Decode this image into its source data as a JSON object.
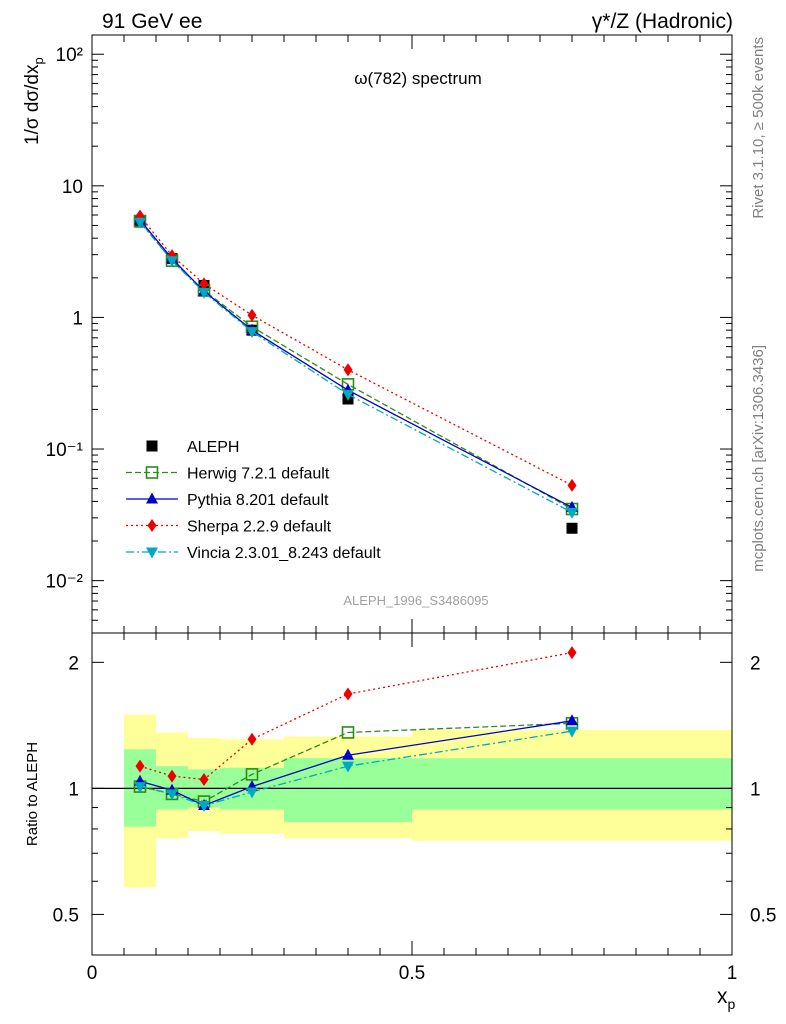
{
  "header": {
    "left": "91 GeV ee",
    "right": "γ*/Z (Hadronic)"
  },
  "side_labels": {
    "rivet": "Rivet 3.1.10, ≥ 500k events",
    "mcplots": "mcplots.cern.ch [arXiv:1306.3436]"
  },
  "chart_data": [
    {
      "type": "line",
      "panel": "main",
      "title": "ω(782) spectrum",
      "watermark": "ALEPH_1996_S3486095",
      "ylabel": "1/σ dσ/dx_p",
      "y_scale": "log",
      "ylim": [
        0.004,
        140
      ],
      "xlim": [
        0,
        1
      ],
      "y_ticks": [
        "10⁻²",
        "10⁻¹",
        "1",
        "10",
        "10²"
      ],
      "legend_position": "bottom-left",
      "x": [
        0.075,
        0.125,
        0.175,
        0.25,
        0.4,
        0.75
      ],
      "series": [
        {
          "name": "ALEPH",
          "color": "#000000",
          "marker": "square-filled",
          "line": "none",
          "values": [
            5.3,
            2.8,
            1.75,
            0.8,
            0.24,
            0.025
          ]
        },
        {
          "name": "Herwig 7.2.1 default",
          "color": "#2e8b1a",
          "marker": "square-open",
          "line": "dashed",
          "values": [
            5.4,
            2.7,
            1.6,
            0.85,
            0.31,
            0.035
          ]
        },
        {
          "name": "Pythia 8.201 default",
          "color": "#0000cc",
          "marker": "triangle-up",
          "line": "solid",
          "values": [
            5.5,
            2.8,
            1.58,
            0.8,
            0.28,
            0.036
          ]
        },
        {
          "name": "Sherpa 2.2.9 default",
          "color": "#ee0000",
          "marker": "diamond",
          "line": "dotted",
          "values": [
            5.9,
            2.95,
            1.8,
            1.04,
            0.4,
            0.053
          ]
        },
        {
          "name": "Vincia 2.3.01_8.243 default",
          "color": "#00a8c0",
          "marker": "triangle-down",
          "line": "dashdot",
          "values": [
            5.3,
            2.7,
            1.55,
            0.78,
            0.26,
            0.033
          ]
        }
      ]
    },
    {
      "type": "line",
      "panel": "ratio",
      "xlabel": "x_p",
      "ylabel": "Ratio to ALEPH",
      "y_scale": "log",
      "ylim": [
        0.4,
        2.35
      ],
      "xlim": [
        0,
        1
      ],
      "x_ticks": [
        "0",
        "0.5",
        "1"
      ],
      "y_ticks": [
        "0.5",
        "1",
        "2"
      ],
      "x": [
        0.075,
        0.125,
        0.175,
        0.25,
        0.4,
        0.75
      ],
      "bands": [
        {
          "x_range": [
            0.05,
            0.1
          ],
          "inner": [
            0.81,
            1.24
          ],
          "outer": [
            0.58,
            1.5
          ]
        },
        {
          "x_range": [
            0.1,
            0.15
          ],
          "inner": [
            0.89,
            1.13
          ],
          "outer": [
            0.76,
            1.36
          ]
        },
        {
          "x_range": [
            0.15,
            0.2
          ],
          "inner": [
            0.9,
            1.11
          ],
          "outer": [
            0.79,
            1.32
          ]
        },
        {
          "x_range": [
            0.2,
            0.3
          ],
          "inner": [
            0.89,
            1.12
          ],
          "outer": [
            0.78,
            1.31
          ]
        },
        {
          "x_range": [
            0.3,
            0.5
          ],
          "inner": [
            0.83,
            1.18
          ],
          "outer": [
            0.76,
            1.33
          ]
        },
        {
          "x_range": [
            0.5,
            1.0
          ],
          "inner": [
            0.89,
            1.18
          ],
          "outer": [
            0.75,
            1.38
          ]
        }
      ],
      "series": [
        {
          "name": "Herwig 7.2.1 default",
          "color": "#2e8b1a",
          "marker": "square-open",
          "line": "dashed",
          "values": [
            1.01,
            0.97,
            0.93,
            1.08,
            1.36,
            1.43
          ]
        },
        {
          "name": "Pythia 8.201 default",
          "color": "#0000cc",
          "marker": "triangle-up",
          "line": "solid",
          "values": [
            1.04,
            0.99,
            0.91,
            1.01,
            1.2,
            1.45
          ]
        },
        {
          "name": "Sherpa 2.2.9 default",
          "color": "#ee0000",
          "marker": "diamond",
          "line": "dotted",
          "values": [
            1.13,
            1.07,
            1.05,
            1.31,
            1.68,
            2.11
          ]
        },
        {
          "name": "Vincia 2.3.01_8.243 default",
          "color": "#00a8c0",
          "marker": "triangle-down",
          "line": "dashdot",
          "values": [
            1.01,
            0.97,
            0.91,
            0.98,
            1.13,
            1.37
          ]
        }
      ]
    }
  ]
}
